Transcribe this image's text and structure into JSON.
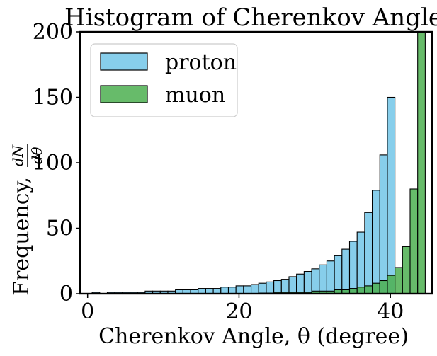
{
  "chart_data": {
    "type": "bar",
    "title": "Histogram of Cherenkov Angle",
    "xlabel": "Cherenkov Angle, θ (degree)",
    "ylabel": "Frequency, dN/dθ",
    "ylabel_prefix": "Frequency,",
    "ylabel_num": "dN",
    "ylabel_den": "dθ",
    "xlim": [
      -1,
      45.5
    ],
    "ylim": [
      0,
      200
    ],
    "xticks": [
      0,
      20,
      40
    ],
    "yticks": [
      0,
      50,
      100,
      150,
      200
    ],
    "legend_position": "top-left",
    "series": [
      {
        "name": "proton",
        "color": "#87CEEB",
        "bins": [
          [
            0.6,
            1.6,
            1
          ],
          [
            1.6,
            2.6,
            0
          ],
          [
            2.6,
            3.6,
            1
          ],
          [
            3.6,
            4.6,
            1
          ],
          [
            4.6,
            5.6,
            1
          ],
          [
            5.6,
            6.6,
            1
          ],
          [
            6.6,
            7.6,
            1
          ],
          [
            7.6,
            8.6,
            2
          ],
          [
            8.6,
            9.6,
            2
          ],
          [
            9.6,
            10.6,
            2
          ],
          [
            10.6,
            11.6,
            2
          ],
          [
            11.6,
            12.6,
            3
          ],
          [
            12.6,
            13.6,
            3
          ],
          [
            13.6,
            14.6,
            3
          ],
          [
            14.6,
            15.6,
            4
          ],
          [
            15.6,
            16.6,
            4
          ],
          [
            16.6,
            17.6,
            4
          ],
          [
            17.6,
            18.6,
            5
          ],
          [
            18.6,
            19.6,
            5
          ],
          [
            19.6,
            20.6,
            6
          ],
          [
            20.6,
            21.6,
            6
          ],
          [
            21.6,
            22.6,
            7
          ],
          [
            22.6,
            23.6,
            8
          ],
          [
            23.6,
            24.6,
            9
          ],
          [
            24.6,
            25.6,
            10
          ],
          [
            25.6,
            26.6,
            11
          ],
          [
            26.6,
            27.6,
            13
          ],
          [
            27.6,
            28.6,
            15
          ],
          [
            28.6,
            29.6,
            17
          ],
          [
            29.6,
            30.6,
            19
          ],
          [
            30.6,
            31.6,
            22
          ],
          [
            31.6,
            32.6,
            25
          ],
          [
            32.6,
            33.6,
            29
          ],
          [
            33.6,
            34.6,
            34
          ],
          [
            34.6,
            35.6,
            40
          ],
          [
            35.6,
            36.6,
            47
          ],
          [
            36.6,
            37.6,
            62
          ],
          [
            37.6,
            38.6,
            79
          ],
          [
            38.6,
            39.6,
            106
          ],
          [
            39.6,
            40.6,
            150
          ]
        ]
      },
      {
        "name": "muon",
        "color": "#4CAF50",
        "bins": [
          [
            22.6,
            23.6,
            0.5
          ],
          [
            23.6,
            24.6,
            0.5
          ],
          [
            24.6,
            25.6,
            1
          ],
          [
            25.6,
            26.6,
            1
          ],
          [
            26.6,
            27.6,
            1
          ],
          [
            27.6,
            28.6,
            1
          ],
          [
            28.6,
            29.6,
            1
          ],
          [
            29.6,
            30.6,
            2
          ],
          [
            30.6,
            31.6,
            2
          ],
          [
            31.6,
            32.6,
            2
          ],
          [
            32.6,
            33.6,
            3
          ],
          [
            33.6,
            34.6,
            3
          ],
          [
            34.6,
            35.6,
            4
          ],
          [
            35.6,
            36.6,
            5
          ],
          [
            36.6,
            37.6,
            6
          ],
          [
            37.6,
            38.6,
            8
          ],
          [
            38.6,
            39.6,
            10
          ],
          [
            39.6,
            40.6,
            14
          ],
          [
            40.6,
            41.6,
            20
          ],
          [
            41.6,
            42.6,
            36
          ],
          [
            42.6,
            43.6,
            80
          ],
          [
            43.6,
            44.6,
            200
          ]
        ]
      }
    ]
  }
}
